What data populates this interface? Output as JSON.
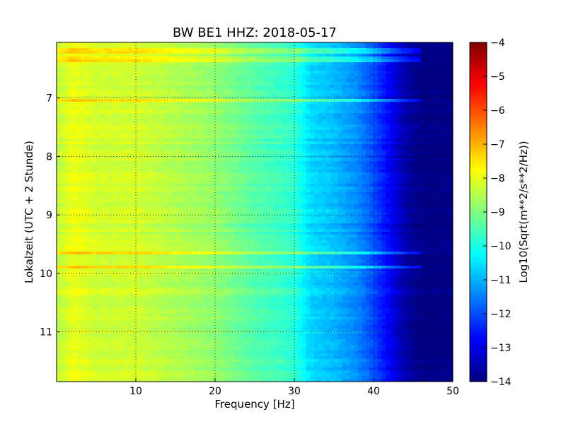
{
  "chart_data": {
    "type": "heatmap",
    "title": "BW BE1 HHZ: 2018-05-17",
    "xlabel": "Frequency [Hz]",
    "ylabel": "Lokalzeit (UTC + 2 Stunde)",
    "xlim": [
      0,
      50
    ],
    "ylim": [
      11.85,
      6.05
    ],
    "y_inverted": true,
    "x_ticks": [
      10,
      20,
      30,
      40,
      50
    ],
    "y_ticks": [
      7,
      8,
      9,
      10,
      11
    ],
    "grid": true,
    "colormap": "jet",
    "colorbar": {
      "label": "Log10(Sqrt(m**2/s**2/Hz))",
      "range": [
        -14,
        -4
      ],
      "ticks": [
        -4,
        -5,
        -6,
        -7,
        -8,
        -9,
        -10,
        -11,
        -12,
        -13,
        -14
      ]
    },
    "spectral_profile": [
      {
        "freq": 0.5,
        "value": -8.3
      },
      {
        "freq": 2,
        "value": -7.9
      },
      {
        "freq": 5,
        "value": -8.2
      },
      {
        "freq": 10,
        "value": -8.2
      },
      {
        "freq": 15,
        "value": -8.5
      },
      {
        "freq": 20,
        "value": -8.8
      },
      {
        "freq": 25,
        "value": -9.4
      },
      {
        "freq": 30,
        "value": -9.8
      },
      {
        "freq": 32,
        "value": -10.6
      },
      {
        "freq": 35,
        "value": -10.9
      },
      {
        "freq": 38,
        "value": -11.4
      },
      {
        "freq": 40,
        "value": -12.0
      },
      {
        "freq": 42,
        "value": -12.8
      },
      {
        "freq": 44,
        "value": -13.6
      },
      {
        "freq": 46,
        "value": -14.0
      },
      {
        "freq": 50,
        "value": -14.0
      }
    ],
    "bright_bands_time": [
      6.2,
      6.35,
      7.05,
      9.65,
      9.9
    ]
  }
}
